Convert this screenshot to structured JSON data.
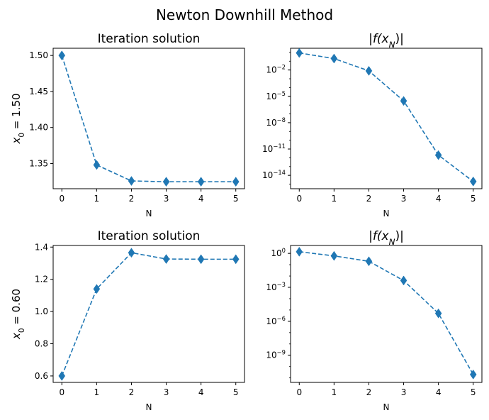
{
  "figure": {
    "suptitle": "Newton Downhill Method",
    "row_labels": [
      "x0 = 1.50",
      "x0 = 0.60"
    ]
  },
  "chart_data": [
    {
      "type": "line",
      "title": "Iteration solution",
      "xlabel": "N",
      "ylabel": "x0 = 1.50",
      "x": [
        0,
        1,
        2,
        3,
        4,
        5
      ],
      "series": [
        {
          "values": [
            1.5,
            1.348,
            1.3258,
            1.3247,
            1.3247,
            1.3247
          ]
        }
      ],
      "xlim": [
        -0.25,
        5.25
      ],
      "ylim": [
        1.315,
        1.51
      ],
      "yscale": "linear",
      "xticks": [
        "0",
        "1",
        "2",
        "3",
        "4",
        "5"
      ],
      "yticks": [
        "1.35",
        "1.40",
        "1.45",
        "1.50"
      ],
      "color": "#1f77b4",
      "linestyle": "dashed",
      "marker": "diamond"
    },
    {
      "type": "line",
      "title": "|f(x_N)|",
      "xlabel": "N",
      "x": [
        0,
        1,
        2,
        3,
        4,
        5
      ],
      "series": [
        {
          "values": [
            0.875,
            0.2,
            0.008,
            3e-06,
            2e-12,
            2e-15
          ]
        }
      ],
      "xlim": [
        -0.25,
        5.25
      ],
      "ylim": [
        3e-16,
        3
      ],
      "yscale": "log",
      "xticks": [
        "0",
        "1",
        "2",
        "3",
        "4",
        "5"
      ],
      "yticks": [
        "10^-14",
        "10^-11",
        "10^-8",
        "10^-5",
        "10^-2"
      ],
      "color": "#1f77b4",
      "linestyle": "dashed",
      "marker": "diamond"
    },
    {
      "type": "line",
      "title": "Iteration solution",
      "xlabel": "N",
      "ylabel": "x0 = 0.60",
      "x": [
        0,
        1,
        2,
        3,
        4,
        5
      ],
      "series": [
        {
          "values": [
            0.6,
            1.14,
            1.365,
            1.326,
            1.3247,
            1.3247
          ]
        }
      ],
      "xlim": [
        -0.25,
        5.25
      ],
      "ylim": [
        0.56,
        1.41
      ],
      "yscale": "linear",
      "xticks": [
        "0",
        "1",
        "2",
        "3",
        "4",
        "5"
      ],
      "yticks": [
        "0.6",
        "0.8",
        "1.0",
        "1.2",
        "1.4"
      ],
      "color": "#1f77b4",
      "linestyle": "dashed",
      "marker": "diamond"
    },
    {
      "type": "line",
      "title": "|f(x_N)|",
      "xlabel": "N",
      "x": [
        0,
        1,
        2,
        3,
        4,
        5
      ],
      "series": [
        {
          "values": [
            1.4,
            0.6,
            0.2,
            0.004,
            5e-06,
            2e-11
          ]
        }
      ],
      "xlim": [
        -0.25,
        5.25
      ],
      "ylim": [
        4e-12,
        5
      ],
      "yscale": "log",
      "xticks": [
        "0",
        "1",
        "2",
        "3",
        "4",
        "5"
      ],
      "yticks": [
        "10^-9",
        "10^-6",
        "10^-3",
        "10^0"
      ],
      "color": "#1f77b4",
      "linestyle": "dashed",
      "marker": "diamond"
    }
  ]
}
